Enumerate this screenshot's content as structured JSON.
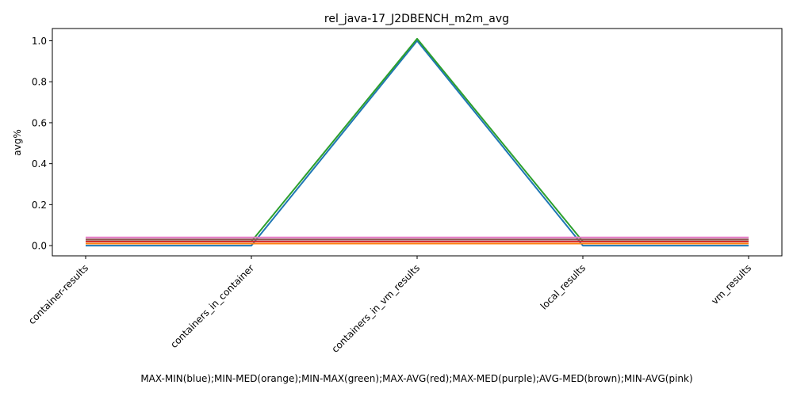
{
  "chart_data": {
    "type": "line",
    "title": "rel_java-17_J2DBENCH_m2m_avg",
    "xlabel": "MAX-MIN(blue);MIN-MED(orange);MIN-MAX(green);MAX-AVG(red);MAX-MED(purple);AVG-MED(brown);MIN-AVG(pink)",
    "ylabel": "avg%",
    "categories": [
      "container-results",
      "containers_in_container",
      "containers_in_vm_results",
      "local_results",
      "vm_results"
    ],
    "ylim": [
      -0.05,
      1.06
    ],
    "yticks": [
      0.0,
      0.2,
      0.4,
      0.6,
      0.8,
      1.0
    ],
    "ytick_labels": [
      "0.0",
      "0.2",
      "0.4",
      "0.6",
      "0.8",
      "1.0"
    ],
    "grid": false,
    "series": [
      {
        "color": "#1f77b4",
        "values": [
          0.0,
          0.0,
          1.0,
          0.0,
          0.0
        ]
      },
      {
        "color": "#ff7f0e",
        "values": [
          0.01,
          0.01,
          0.01,
          0.01,
          0.01
        ]
      },
      {
        "color": "#2ca02c",
        "values": [
          0.02,
          0.02,
          1.01,
          0.02,
          0.02
        ]
      },
      {
        "color": "#d62728",
        "values": [
          0.02,
          0.02,
          0.02,
          0.02,
          0.02
        ]
      },
      {
        "color": "#9467bd",
        "values": [
          0.03,
          0.03,
          0.03,
          0.03,
          0.03
        ]
      },
      {
        "color": "#8c564b",
        "values": [
          0.03,
          0.03,
          0.03,
          0.03,
          0.03
        ]
      },
      {
        "color": "#e377c2",
        "values": [
          0.04,
          0.04,
          0.04,
          0.04,
          0.04
        ]
      }
    ]
  }
}
